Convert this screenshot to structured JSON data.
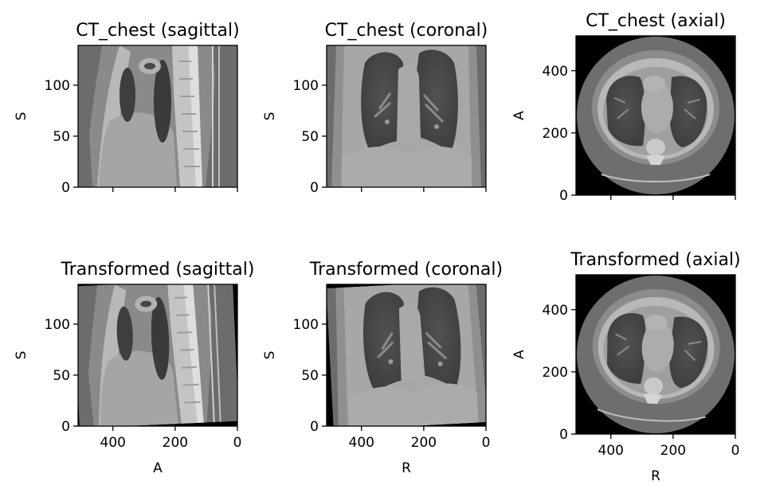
{
  "chart_data": [
    {
      "type": "image",
      "title": "CT_chest (sagittal)",
      "view": "sagittal",
      "xlabel": "",
      "ylabel": "S",
      "xlim": [
        512,
        0
      ],
      "ylim": [
        0,
        139
      ],
      "xticks": [
        400,
        200,
        0
      ],
      "xtick_labels_visible": false,
      "yticks": [
        0,
        50,
        100
      ],
      "ytick_labels": [
        "0",
        "50",
        "100"
      ]
    },
    {
      "type": "image",
      "title": "CT_chest (coronal)",
      "view": "coronal",
      "xlabel": "",
      "ylabel": "S",
      "xlim": [
        512,
        0
      ],
      "ylim": [
        0,
        139
      ],
      "xticks": [
        400,
        200,
        0
      ],
      "xtick_labels_visible": false,
      "yticks": [
        0,
        50,
        100
      ],
      "ytick_labels": [
        "0",
        "50",
        "100"
      ]
    },
    {
      "type": "image",
      "title": "CT_chest (axial)",
      "view": "axial",
      "xlabel": "",
      "ylabel": "A",
      "xlim": [
        512,
        0
      ],
      "ylim": [
        0,
        512
      ],
      "xticks": [
        400,
        200,
        0
      ],
      "xtick_labels_visible": false,
      "yticks": [
        0,
        200,
        400
      ],
      "ytick_labels": [
        "0",
        "200",
        "400"
      ]
    },
    {
      "type": "image",
      "title": "Transformed (sagittal)",
      "view": "sagittal",
      "xlabel": "A",
      "ylabel": "S",
      "xlim": [
        512,
        0
      ],
      "ylim": [
        0,
        139
      ],
      "xticks": [
        400,
        200,
        0
      ],
      "xtick_labels": [
        "400",
        "200",
        "0"
      ],
      "yticks": [
        0,
        50,
        100
      ],
      "ytick_labels": [
        "0",
        "50",
        "100"
      ]
    },
    {
      "type": "image",
      "title": "Transformed (coronal)",
      "view": "coronal",
      "xlabel": "R",
      "ylabel": "S",
      "xlim": [
        512,
        0
      ],
      "ylim": [
        0,
        139
      ],
      "xticks": [
        400,
        200,
        0
      ],
      "xtick_labels": [
        "400",
        "200",
        "0"
      ],
      "yticks": [
        0,
        50,
        100
      ],
      "ytick_labels": [
        "0",
        "50",
        "100"
      ]
    },
    {
      "type": "image",
      "title": "Transformed (axial)",
      "view": "axial",
      "xlabel": "R",
      "ylabel": "A",
      "xlim": [
        512,
        0
      ],
      "ylim": [
        0,
        512
      ],
      "xticks": [
        400,
        200,
        0
      ],
      "xtick_labels": [
        "400",
        "200",
        "0"
      ],
      "yticks": [
        0,
        200,
        400
      ],
      "ytick_labels": [
        "0",
        "200",
        "400"
      ]
    }
  ]
}
